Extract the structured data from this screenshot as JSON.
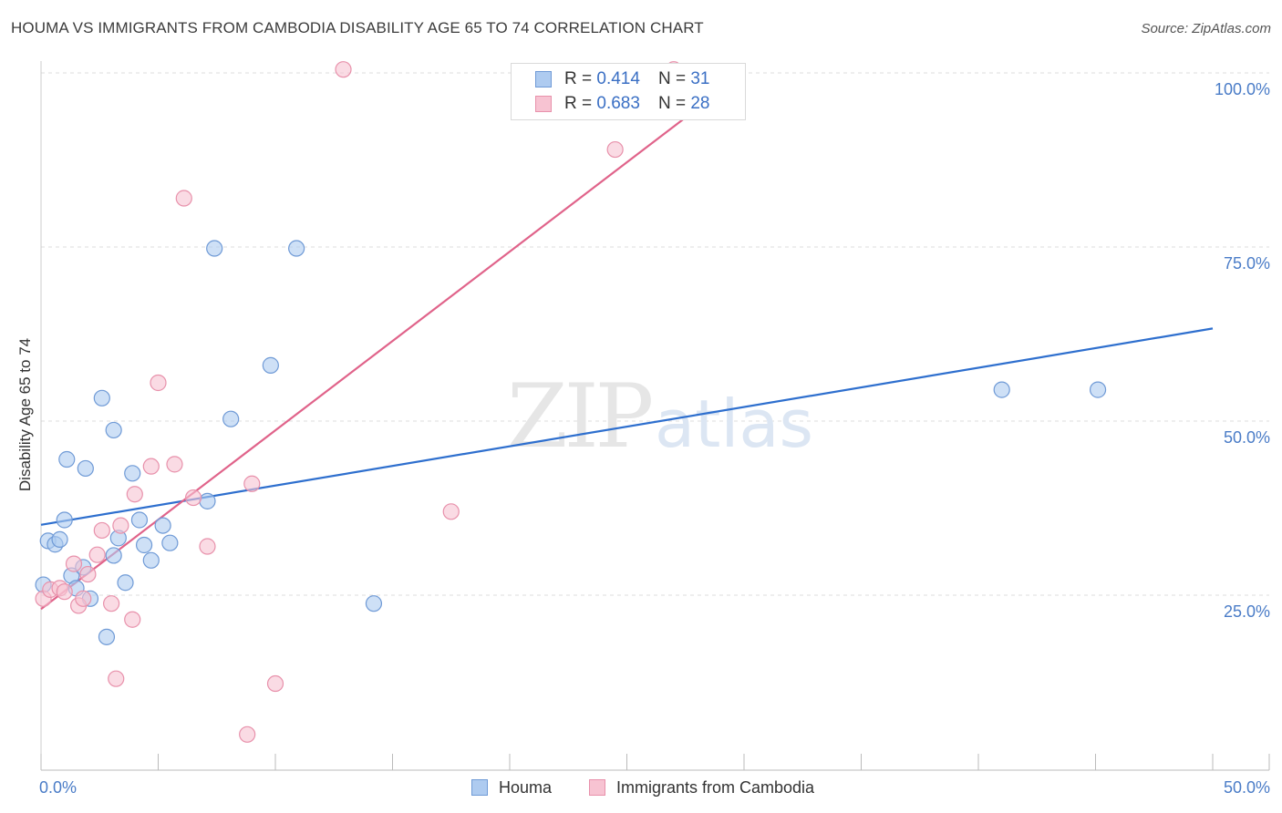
{
  "title": "HOUMA VS IMMIGRANTS FROM CAMBODIA DISABILITY AGE 65 TO 74 CORRELATION CHART",
  "source": "Source: ZipAtlas.com",
  "colors": {
    "houma_fill": "#aecbf0",
    "houma_stroke": "#6f9ad6",
    "houma_line": "#2e6fce",
    "cambodia_fill": "#f7c3d2",
    "cambodia_stroke": "#e891ab",
    "cambodia_line": "#e0638a",
    "tick_blue": "#4a7cc7",
    "grid": "#dddddd"
  },
  "legend": {
    "r_label": "R =",
    "n_label": "N =",
    "houma": {
      "r": "0.414",
      "n": "31"
    },
    "cambodia": {
      "r": "0.683",
      "n": "28"
    }
  },
  "chart_data": {
    "type": "scatter",
    "title": "HOUMA VS IMMIGRANTS FROM CAMBODIA DISABILITY AGE 65 TO 74 CORRELATION CHART",
    "xlabel": "",
    "ylabel": "Disability Age 65 to 74",
    "xlim": [
      0,
      50
    ],
    "ylim": [
      0,
      102
    ],
    "x_tick_labels": [
      "0.0%",
      "50.0%"
    ],
    "y_ticks": [
      25,
      50,
      75,
      100
    ],
    "y_tick_labels": [
      "25.0%",
      "50.0%",
      "75.0%",
      "100.0%"
    ],
    "watermark": {
      "zip": "ZIP",
      "atlas": "atlas"
    },
    "series": [
      {
        "name": "Houma",
        "points": [
          [
            0.1,
            26.5
          ],
          [
            0.3,
            32.8
          ],
          [
            0.6,
            32.3
          ],
          [
            0.8,
            33.0
          ],
          [
            1.0,
            35.8
          ],
          [
            1.1,
            44.5
          ],
          [
            1.3,
            27.8
          ],
          [
            1.5,
            26.0
          ],
          [
            1.8,
            29.0
          ],
          [
            1.9,
            43.2
          ],
          [
            2.1,
            24.5
          ],
          [
            2.6,
            53.3
          ],
          [
            2.8,
            19.0
          ],
          [
            3.1,
            48.7
          ],
          [
            3.1,
            30.7
          ],
          [
            3.3,
            33.2
          ],
          [
            3.6,
            26.8
          ],
          [
            3.9,
            42.5
          ],
          [
            4.2,
            35.8
          ],
          [
            4.4,
            32.2
          ],
          [
            4.7,
            30.0
          ],
          [
            5.2,
            35.0
          ],
          [
            5.5,
            32.5
          ],
          [
            7.1,
            38.5
          ],
          [
            7.4,
            74.8
          ],
          [
            8.1,
            50.3
          ],
          [
            9.8,
            58.0
          ],
          [
            10.9,
            74.8
          ],
          [
            14.2,
            23.8
          ],
          [
            41.0,
            54.5
          ],
          [
            45.1,
            54.5
          ]
        ],
        "trend": [
          [
            0,
            35.1
          ],
          [
            50,
            63.3
          ]
        ]
      },
      {
        "name": "Immigrants from Cambodia",
        "points": [
          [
            0.1,
            24.5
          ],
          [
            0.4,
            25.8
          ],
          [
            0.8,
            26.0
          ],
          [
            1.0,
            25.5
          ],
          [
            1.4,
            29.5
          ],
          [
            1.6,
            23.5
          ],
          [
            1.8,
            24.5
          ],
          [
            2.0,
            28.0
          ],
          [
            2.4,
            30.8
          ],
          [
            2.6,
            34.3
          ],
          [
            3.0,
            23.8
          ],
          [
            3.2,
            13.0
          ],
          [
            3.4,
            35.0
          ],
          [
            3.9,
            21.5
          ],
          [
            4.0,
            39.5
          ],
          [
            4.7,
            43.5
          ],
          [
            5.0,
            55.5
          ],
          [
            5.7,
            43.8
          ],
          [
            6.1,
            82.0
          ],
          [
            6.5,
            39.0
          ],
          [
            7.1,
            32.0
          ],
          [
            8.8,
            5.0
          ],
          [
            9.0,
            41.0
          ],
          [
            10.0,
            12.3
          ],
          [
            12.9,
            100.5
          ],
          [
            17.5,
            37.0
          ],
          [
            24.5,
            89.0
          ],
          [
            27.0,
            100.5
          ]
        ],
        "trend": [
          [
            0,
            23.0
          ],
          [
            30,
            100.0
          ]
        ]
      }
    ]
  },
  "bottom_legend": [
    "Houma",
    "Immigrants from Cambodia"
  ]
}
